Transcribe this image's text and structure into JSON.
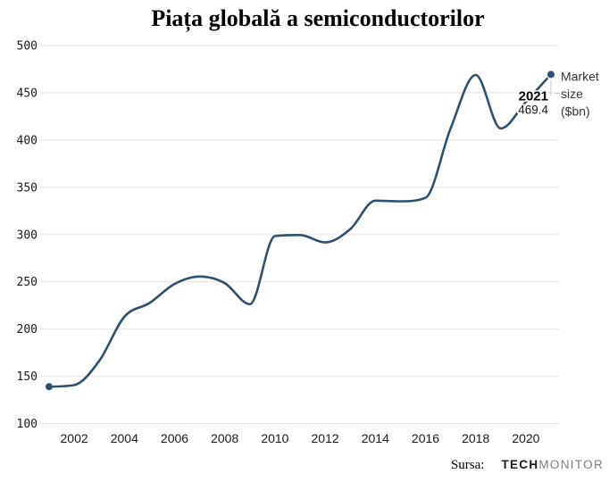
{
  "title": "Piața globală a semiconductorilor",
  "chart_data": {
    "type": "line",
    "title": "Piața globală a semiconductorilor",
    "series_name": "Market size ($bn)",
    "x": [
      2001,
      2002,
      2003,
      2004,
      2005,
      2006,
      2007,
      2008,
      2009,
      2010,
      2011,
      2012,
      2013,
      2014,
      2015,
      2016,
      2017,
      2018,
      2019,
      2020,
      2021
    ],
    "values": [
      139.0,
      140.7,
      166.4,
      213.0,
      227.5,
      247.7,
      255.6,
      248.6,
      226.3,
      298.3,
      299.5,
      291.6,
      305.6,
      335.8,
      335.2,
      338.9,
      412.2,
      468.8,
      412.3,
      440.4,
      469.4
    ],
    "xticks": [
      2002,
      2004,
      2006,
      2008,
      2010,
      2012,
      2014,
      2016,
      2018,
      2020
    ],
    "yticks": [
      100,
      150,
      200,
      250,
      300,
      350,
      400,
      450,
      500
    ],
    "ylim": [
      100,
      500
    ],
    "xlim": [
      2001,
      2021
    ],
    "grid": "horizontal",
    "legend_position": "line-end-right",
    "line_color": "#2b5272",
    "endpoint_annotation": {
      "year": "2021",
      "value": "469.4"
    },
    "series_label_lines": [
      "Market",
      "size",
      "($bn)"
    ]
  },
  "source": {
    "label": "Sursa:",
    "brand_bold": "TECH",
    "brand_light": "MONITOR"
  },
  "colors": {
    "line": "#2b5272",
    "grid": "#e4e4e4",
    "leader": "#c4c4c4",
    "tick_text": "#1a1a1a",
    "annotation_text": "#333333"
  }
}
